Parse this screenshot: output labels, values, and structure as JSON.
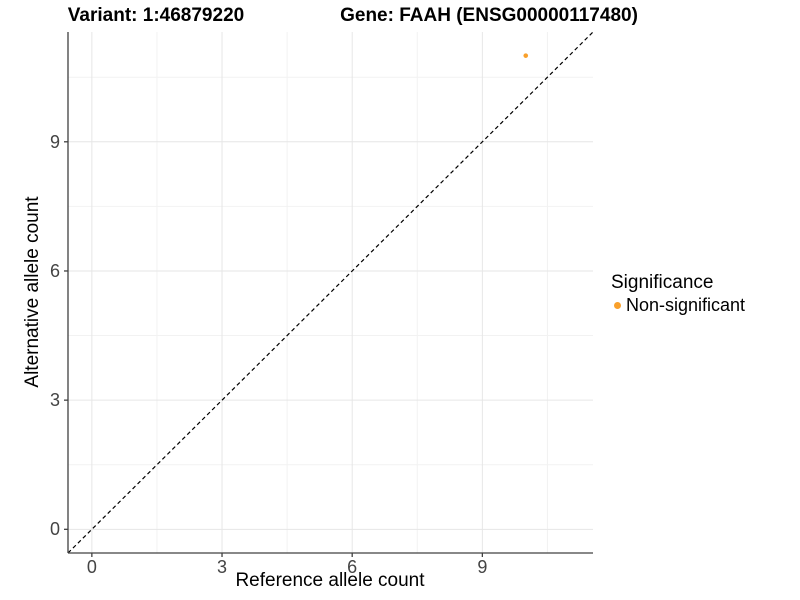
{
  "titles": {
    "variant": "Variant: 1:46879220",
    "gene": "Gene: FAAH (ENSG00000117480)"
  },
  "legend": {
    "title": "Significance",
    "items": [
      {
        "label": "Non-significant",
        "color": "#F9A02B"
      }
    ]
  },
  "colors": {
    "point": "#F9A02B",
    "grid_major": "#e6e6e6",
    "grid_minor": "#f2f2f2",
    "axis_line": "#404040",
    "tick_mark": "#404040",
    "tick_label": "#444444",
    "dashed_line": "#000000",
    "background": "#ffffff"
  },
  "chart_data": {
    "type": "scatter",
    "title": "Variant: 1:46879220  |  Gene: FAAH (ENSG00000117480)",
    "xlabel": "Reference allele count",
    "ylabel": "Alternative allele count",
    "xlim": [
      -0.55,
      11.55
    ],
    "ylim": [
      -0.55,
      11.55
    ],
    "x_ticks": [
      0,
      3,
      6,
      9
    ],
    "y_ticks": [
      0,
      3,
      6,
      9
    ],
    "minor_x_ticks": [
      1.5,
      4.5,
      7.5,
      10.5
    ],
    "minor_y_ticks": [
      1.5,
      4.5,
      7.5,
      10.5
    ],
    "grid": true,
    "legend_position": "right",
    "reference_line": {
      "type": "identity",
      "slope": 1,
      "intercept": 0,
      "style": "dashed"
    },
    "series": [
      {
        "name": "Non-significant",
        "color": "#F9A02B",
        "points": [
          {
            "x": 10,
            "y": 11
          }
        ]
      }
    ]
  }
}
